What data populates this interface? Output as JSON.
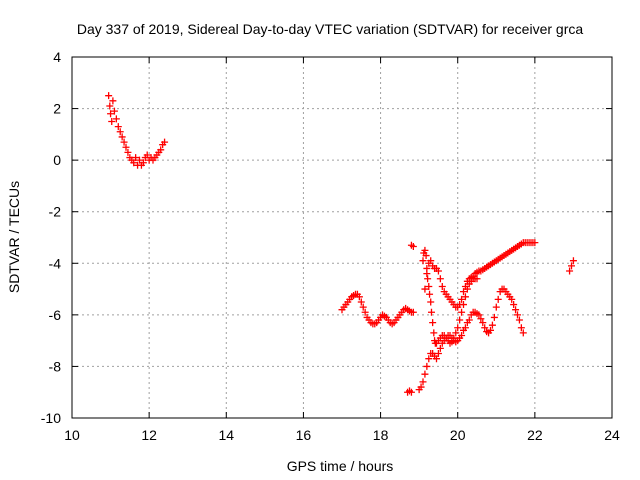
{
  "chart_data": {
    "type": "scatter",
    "title": "Day 337 of 2019, Sidereal Day-to-day VTEC variation (SDTVAR) for receiver grca",
    "xlabel": "GPS time / hours",
    "ylabel": "SDTVAR / TECUs",
    "xlim": [
      10,
      24
    ],
    "ylim": [
      -10,
      4
    ],
    "xticks": [
      "10",
      "12",
      "14",
      "16",
      "18",
      "20",
      "22",
      "24"
    ],
    "yticks": [
      "4",
      "2",
      "0",
      "-2",
      "-4",
      "-6",
      "-8",
      "-10"
    ],
    "grid": true,
    "marker": "+",
    "colors": {
      "series": "#ff0000",
      "grid": "#a0a0a0",
      "axes": "#000000"
    },
    "series": [
      {
        "x": [
          10.95,
          10.98,
          11.0,
          11.03,
          11.06,
          11.1,
          11.15,
          11.2,
          11.25,
          11.3,
          11.35,
          11.4,
          11.45,
          11.5,
          11.55,
          11.6,
          11.65,
          11.7,
          11.75,
          11.8,
          11.85,
          11.9,
          11.95,
          12.0,
          12.05,
          12.1,
          12.15,
          12.2,
          12.25,
          12.3,
          12.35,
          12.4
        ],
        "y": [
          2.5,
          2.1,
          1.8,
          1.5,
          2.3,
          1.9,
          1.6,
          1.3,
          1.1,
          0.9,
          0.7,
          0.5,
          0.3,
          0.1,
          0.0,
          -0.1,
          0.1,
          -0.2,
          0.0,
          -0.2,
          -0.1,
          0.1,
          0.2,
          0.0,
          0.1,
          0.0,
          0.1,
          0.2,
          0.3,
          0.4,
          0.6,
          0.7
        ]
      },
      {
        "x": [
          17.0,
          17.05,
          17.1,
          17.15,
          17.2,
          17.25,
          17.3,
          17.35,
          17.4,
          17.45,
          17.5,
          17.55,
          17.6,
          17.65,
          17.7,
          17.75,
          17.8,
          17.85,
          17.9,
          17.95,
          18.0,
          18.05,
          18.1,
          18.15,
          18.2,
          18.25,
          18.3,
          18.35,
          18.4,
          18.45,
          18.5,
          18.55,
          18.6,
          18.65,
          18.7,
          18.75,
          18.8,
          18.85
        ],
        "y": [
          -5.8,
          -5.7,
          -5.6,
          -5.5,
          -5.4,
          -5.3,
          -5.25,
          -5.2,
          -5.2,
          -5.3,
          -5.5,
          -5.7,
          -5.9,
          -6.1,
          -6.2,
          -6.3,
          -6.35,
          -6.35,
          -6.3,
          -6.2,
          -6.1,
          -6.0,
          -6.05,
          -6.1,
          -6.2,
          -6.3,
          -6.35,
          -6.3,
          -6.2,
          -6.1,
          -6.0,
          -5.9,
          -5.8,
          -5.75,
          -5.8,
          -5.85,
          -5.9,
          -5.9
        ]
      },
      {
        "x": [
          18.7,
          18.75,
          18.8
        ],
        "y": [
          -9.0,
          -8.95,
          -9.0
        ]
      },
      {
        "x": [
          18.8,
          18.85
        ],
        "y": [
          -3.3,
          -3.35
        ]
      },
      {
        "x": [
          19.0,
          19.05,
          19.1,
          19.15,
          19.2,
          19.25,
          19.3,
          19.35,
          19.4,
          19.45,
          19.5,
          19.55,
          19.6,
          19.65,
          19.7,
          19.75,
          19.8,
          19.85,
          19.9,
          19.95,
          20.0,
          20.05,
          20.1,
          20.15,
          20.2,
          20.25,
          20.3,
          20.35,
          20.4,
          20.45,
          20.5,
          20.55,
          20.6,
          20.65,
          20.7,
          20.75,
          20.8,
          20.85,
          20.9,
          20.95,
          21.0,
          21.05,
          21.1,
          21.15,
          21.2,
          21.25,
          21.3,
          21.35,
          21.4,
          21.45,
          21.5,
          21.55,
          21.6,
          21.65,
          21.7
        ],
        "y": [
          -8.9,
          -8.8,
          -8.6,
          -8.3,
          -8.0,
          -7.7,
          -7.5,
          -7.5,
          -7.6,
          -7.7,
          -7.5,
          -7.3,
          -7.1,
          -7.0,
          -6.9,
          -6.8,
          -6.8,
          -6.9,
          -7.0,
          -7.05,
          -7.0,
          -6.9,
          -6.8,
          -6.6,
          -6.5,
          -6.3,
          -6.2,
          -6.0,
          -5.9,
          -5.9,
          -5.95,
          -6.0,
          -6.15,
          -6.3,
          -6.5,
          -6.65,
          -6.7,
          -6.6,
          -6.4,
          -6.1,
          -5.7,
          -5.4,
          -5.1,
          -5.0,
          -5.0,
          -5.1,
          -5.2,
          -5.3,
          -5.4,
          -5.6,
          -5.8,
          -6.0,
          -6.2,
          -6.5,
          -6.7
        ]
      },
      {
        "x": [
          19.1,
          19.12,
          19.15,
          19.18,
          19.2,
          19.22,
          19.25,
          19.27,
          19.3,
          19.32,
          19.35,
          19.38,
          19.4,
          19.42,
          19.45,
          19.5,
          19.55,
          19.6,
          19.65,
          19.7,
          19.75,
          19.8,
          19.85,
          19.9,
          19.95,
          20.0,
          20.05,
          20.1,
          20.15,
          20.2,
          20.25,
          20.3,
          20.35,
          20.4,
          20.45,
          20.5
        ],
        "y": [
          -3.9,
          -3.6,
          -3.5,
          -3.7,
          -4.2,
          -4.6,
          -4.9,
          -5.2,
          -5.5,
          -5.9,
          -6.3,
          -6.7,
          -7.0,
          -7.1,
          -7.1,
          -7.0,
          -6.9,
          -6.8,
          -6.8,
          -6.9,
          -7.0,
          -7.1,
          -7.05,
          -6.9,
          -6.7,
          -6.5,
          -6.2,
          -5.9,
          -5.6,
          -5.3,
          -5.0,
          -4.8,
          -4.7,
          -4.6,
          -4.6,
          -4.6
        ]
      },
      {
        "x": [
          19.15,
          19.2,
          19.25,
          19.3,
          19.35,
          19.4,
          19.45,
          19.5,
          19.55,
          19.6,
          19.65,
          19.7,
          19.75,
          19.8,
          19.85,
          19.9,
          19.95,
          20.0,
          20.05,
          20.1,
          20.15,
          20.2,
          20.25,
          20.3,
          20.35,
          20.4,
          20.45,
          20.5,
          20.55,
          20.6,
          20.65,
          20.7,
          20.75,
          20.8,
          20.85,
          20.9,
          20.95,
          21.0,
          21.05,
          21.1,
          21.15,
          21.2,
          21.25,
          21.3,
          21.35,
          21.4,
          21.45,
          21.5,
          21.55,
          21.6,
          21.65,
          21.7,
          21.75,
          21.8,
          21.85,
          21.9,
          21.95,
          22.0
        ],
        "y": [
          -5.0,
          -4.4,
          -4.0,
          -3.9,
          -4.1,
          -4.2,
          -4.2,
          -4.3,
          -4.6,
          -4.9,
          -5.1,
          -5.2,
          -5.3,
          -5.4,
          -5.5,
          -5.6,
          -5.7,
          -5.7,
          -5.6,
          -5.4,
          -5.1,
          -4.9,
          -4.7,
          -4.6,
          -4.55,
          -4.5,
          -4.4,
          -4.35,
          -4.3,
          -4.3,
          -4.25,
          -4.2,
          -4.15,
          -4.1,
          -4.05,
          -4.0,
          -3.95,
          -3.9,
          -3.85,
          -3.8,
          -3.75,
          -3.7,
          -3.65,
          -3.6,
          -3.55,
          -3.5,
          -3.45,
          -3.4,
          -3.35,
          -3.3,
          -3.25,
          -3.2,
          -3.2,
          -3.2,
          -3.2,
          -3.2,
          -3.2,
          -3.2
        ]
      },
      {
        "x": [
          22.9,
          22.95,
          23.0
        ],
        "y": [
          -4.3,
          -4.1,
          -3.9
        ]
      }
    ]
  }
}
